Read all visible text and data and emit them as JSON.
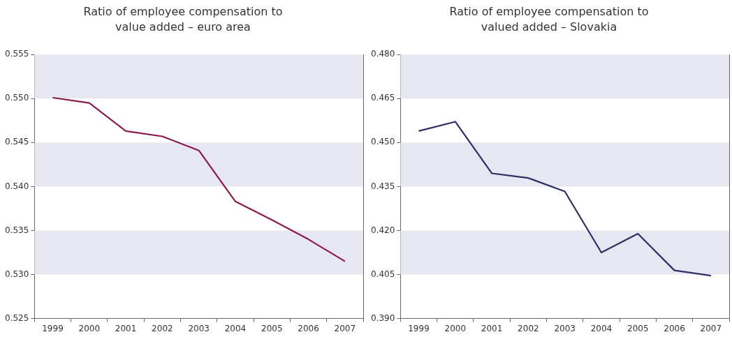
{
  "chart_data": [
    {
      "type": "line",
      "title": "Ratio of employee compensation to value added – euro area",
      "categories": [
        "1999",
        "2000",
        "2001",
        "2002",
        "2003",
        "2004",
        "2005",
        "2006",
        "2007"
      ],
      "series": [
        {
          "color": "#8b1a4a",
          "values": [
            0.5501,
            0.5495,
            0.5463,
            0.5457,
            0.5441,
            0.5383,
            0.5362,
            0.534,
            0.5315
          ]
        }
      ],
      "ylim": [
        0.525,
        0.555
      ],
      "yticks": [
        {
          "value": 0.525,
          "label": "0.525"
        },
        {
          "value": 0.53,
          "label": "0.530"
        },
        {
          "value": 0.535,
          "label": "0.535"
        },
        {
          "value": 0.54,
          "label": "0.540"
        },
        {
          "value": 0.545,
          "label": "0.545"
        },
        {
          "value": 0.55,
          "label": "0.550"
        },
        {
          "value": 0.555,
          "label": "0.555"
        }
      ],
      "bands": [
        {
          "axis": "y",
          "from": 0.55,
          "to": 0.555,
          "color": "#e7e7f1"
        },
        {
          "axis": "y",
          "from": 0.54,
          "to": 0.545,
          "color": "#e7e7f1"
        },
        {
          "axis": "y",
          "from": 0.53,
          "to": 0.535,
          "color": "#e7e7f1"
        }
      ],
      "grid": false,
      "legend": false,
      "marker": "none",
      "line_style": "solid"
    },
    {
      "type": "line",
      "title": "Ratio of employee compensation to valued added – Slovakia",
      "categories": [
        "1999",
        "2000",
        "2001",
        "2002",
        "2003",
        "2004",
        "2005",
        "2006",
        "2007"
      ],
      "series": [
        {
          "color": "#2e2d66",
          "values": [
            0.4539,
            0.4571,
            0.4395,
            0.4379,
            0.4333,
            0.4125,
            0.4189,
            0.4064,
            0.4046
          ]
        }
      ],
      "ylim": [
        0.39,
        0.48
      ],
      "yticks": [
        {
          "value": 0.39,
          "label": "0.390"
        },
        {
          "value": 0.405,
          "label": "0.405"
        },
        {
          "value": 0.42,
          "label": "0.420"
        },
        {
          "value": 0.435,
          "label": "0.435"
        },
        {
          "value": 0.45,
          "label": "0.450"
        },
        {
          "value": 0.465,
          "label": "0.465"
        },
        {
          "value": 0.48,
          "label": "0.480"
        }
      ],
      "bands": [
        {
          "axis": "y",
          "from": 0.465,
          "to": 0.48,
          "color": "#e7e7f1"
        },
        {
          "axis": "y",
          "from": 0.435,
          "to": 0.45,
          "color": "#e7e7f1"
        },
        {
          "axis": "y",
          "from": 0.405,
          "to": 0.42,
          "color": "#e7e7f1"
        }
      ],
      "grid": false,
      "legend": false,
      "marker": "none",
      "line_style": "solid"
    }
  ]
}
